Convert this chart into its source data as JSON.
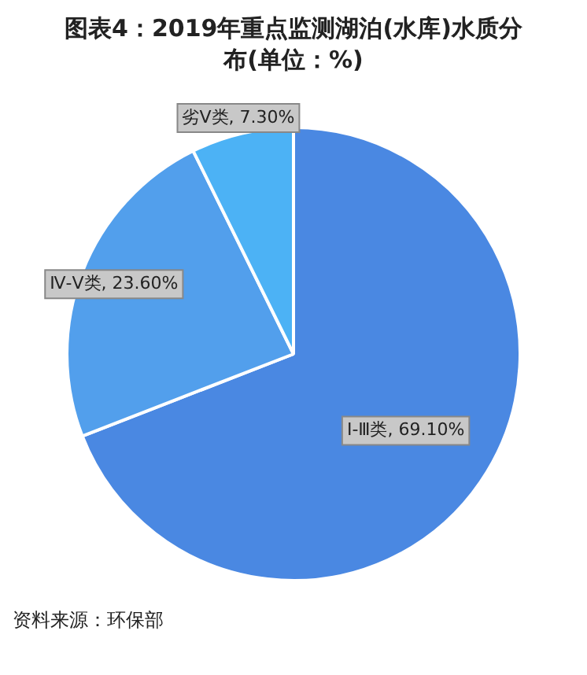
{
  "chart_data": {
    "type": "pie",
    "title": "图表4：2019年重点监测湖泊(水库)水质分布(单位：%)",
    "categories": [
      "Ⅰ-Ⅲ类",
      "Ⅳ-Ⅴ类",
      "劣Ⅴ类"
    ],
    "values": [
      69.1,
      23.6,
      7.3
    ],
    "colors": [
      "#4a88e2",
      "#529fec",
      "#4cb2f5"
    ],
    "value_labels": [
      "69.10%",
      "23.60%",
      "7.30%"
    ],
    "legend": false,
    "annotations": [
      "资料来源：环保部"
    ]
  }
}
